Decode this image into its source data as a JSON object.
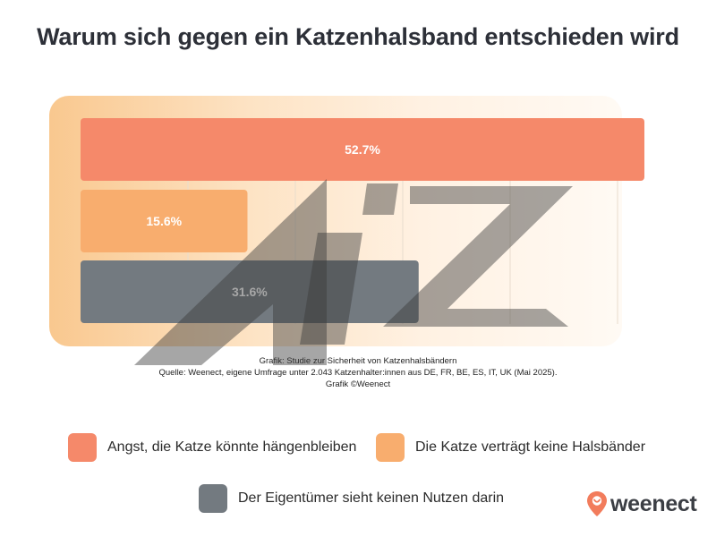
{
  "chart_data": {
    "type": "bar",
    "orientation": "horizontal",
    "title": "Warum sich gegen ein Katzenhalsband entschieden wird",
    "xlim": [
      0,
      52.7
    ],
    "grid": true,
    "legend_position": "bottom",
    "series": [
      {
        "name": "Angst, die Katze könnte hängenbleiben",
        "value": 52.7,
        "label": "52.7%",
        "color": "#f5896a"
      },
      {
        "name": "Die Katze verträgt keine Halsbänder",
        "value": 15.6,
        "label": "15.6%",
        "color": "#f8ad6e"
      },
      {
        "name": "Der Eigentümer sieht keinen Nutzen darin",
        "value": 31.6,
        "label": "31.6%",
        "color": "#737a80"
      }
    ]
  },
  "source": {
    "line1": "Grafik: Studie zur Sicherheit von Katzenhalsbändern",
    "line2": "Quelle: Weenect, eigene Umfrage unter 2.043 Katzenhalter:innen aus DE, FR, BE, ES, IT, UK (Mai 2025).",
    "line3": "Grafik ©Weenect"
  },
  "logo": {
    "text": "weenect",
    "icon": "location-pin-icon",
    "color": "#f27c5c"
  },
  "watermark": {
    "text": "AiZ"
  }
}
